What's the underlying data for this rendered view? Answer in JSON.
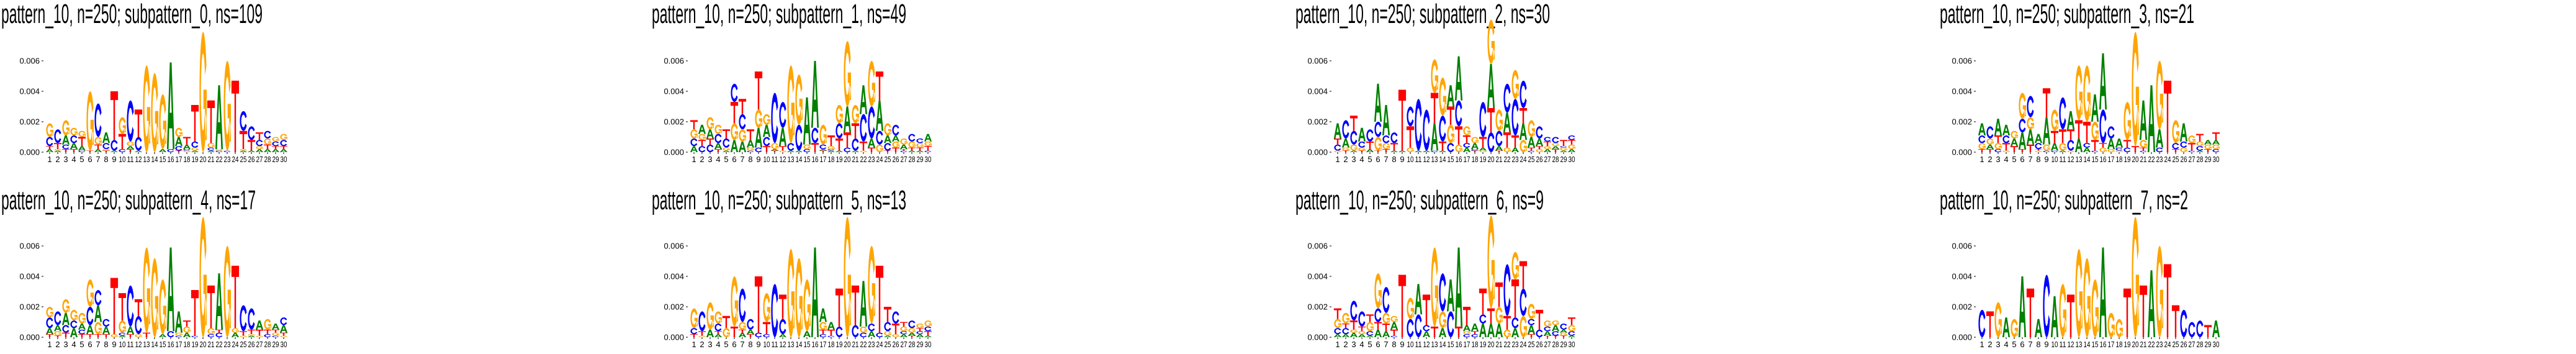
{
  "colors": {
    "A": "#008000",
    "C": "#0000ff",
    "G": "#ffa500",
    "T": "#ff0000"
  },
  "chart_data": {
    "type": "sequence_logo",
    "height_unit": "1e-4",
    "ylim": [
      0,
      0.008
    ],
    "yticks": [
      "0.000",
      "0.002",
      "0.004",
      "0.006"
    ],
    "positions": [
      "1",
      "2",
      "3",
      "4",
      "5",
      "6",
      "7",
      "8",
      "9",
      "10",
      "11",
      "12",
      "13",
      "14",
      "15",
      "16",
      "17",
      "18",
      "19",
      "20",
      "21",
      "22",
      "23",
      "24",
      "25",
      "26",
      "27",
      "28",
      "29",
      "30"
    ],
    "panels": [
      {
        "title": "pattern_10, n=250; subpattern_0, ns=109",
        "stacks": [
          "A2T2C6G9",
          "A1G1T4C9",
          "T2C3A6G10",
          "T2A4C5G5",
          "C1A3T6G4",
          "T1G39",
          "A2T3G5C22",
          "T1G1C4A7",
          "A1C7T32",
          "C2T10G11",
          "T2A2G3C27",
          "A1C9T18",
          "G57",
          "G52",
          "A2G36",
          "C2A57",
          "T1C3A6G6",
          "G1C1A3T5",
          "A1G2C4T24",
          "G79",
          "A1C2G3T28",
          "C1G1A42",
          "C1G59",
          "T47",
          "A1G1T12C13",
          "A1T7C9",
          "A2G2C4T5",
          "A2T3G4C5",
          "A2T2C3G3",
          "A2T2C4G4"
        ]
      },
      {
        "title": "pattern_10, n=250; subpattern_1, ns=49",
        "stacks": [
          "A4C5G6T6",
          "C4T4G4A6",
          "C5T4A6G8",
          "T2A4C6G6",
          "A1G2C6T6",
          "A8G11T14C12",
          "A7G8C10T10",
          "C1G2A5T7",
          "C3A13G12T25",
          "T4C6A8G7",
          "T1A1G4C33",
          "G1T3A12C17",
          "A1C5G51",
          "A1C17G33",
          "C2G3A31",
          "T6C10A44",
          "T1A1C3G13",
          "A1C1G2T7",
          "A1T8C10G12",
          "C3T10A17G43",
          "A1C8T10G12",
          "G1T6C18A19",
          "T3A6C21G30",
          "G5C9A20T19",
          "T1C5A5G8",
          "T3G4A4C7",
          "C1T1A3G4",
          "A1T2G4C5",
          "A1T2G3C3",
          "C1T3G3A5"
        ]
      },
      {
        "title": "pattern_10, n=250; subpattern_2, ns=30",
        "stacks": [
          "G1C4T4A10",
          "T1G2A6C12",
          "A1G4C9T10",
          "T1G2C4A9",
          "A2T5C8",
          "T1G9C10A25",
          "T2G4C5A20",
          "A1T5C7",
          "A1T40",
          "G3T14C13",
          "A1C34",
          "A1C27",
          "C1A18T20G22",
          "A1T6C17G25",
          "C6G12T12A14",
          "G5T12C17A29",
          "A3C3T5G6",
          "T1C1A4G4",
          "G1A2T7C23",
          "C13T16A29G29",
          "T1A3C10G14",
          "G3T10A13C19",
          "A3T8C24G19",
          "G8A11T10C18",
          "C1T2A7G11",
          "G2T2A5C8",
          "A2G2T3C3",
          "T2A2G2C4",
          "A1G2C1T4",
          "A2G3T3C3"
        ]
      },
      {
        "title": "pattern_10, n=250; subpattern_3, ns=21",
        "stacks": [
          "T2G4C5A8",
          "T2A3G4C8",
          "C2G4T5A11",
          "G1T5C5A7",
          "T4A5G5",
          "T2A11C9G17",
          "T5A10G8C14",
          "G1T1C4A6",
          "C1G4A18T19",
          "C1A5T8G14",
          "A1G5T9C21",
          "G1C7T7A12",
          "A9T12G36",
          "A3C3T14G37",
          "C1T7G12A18",
          "G3T3C22A37",
          "G2A7C8",
          "G1C2A6",
          "C3T5G25",
          "T4G75",
          "C1T2G5A26",
          "A44",
          "C3A12G45",
          "T47",
          "T2C4G15",
          "G3C4A12",
          "C1T5G5",
          "A1C3G3T5",
          "T2G3A3",
          "C2G3A3T5"
        ]
      },
      {
        "title": "pattern_10, n=250; subpattern_4, ns=17",
        "stacks": [
          "T2A4C7G7",
          "T1G3A4C9",
          "T3C5A8G9",
          "A6C5G7",
          "T2C3A4G7",
          "T2A6C12G18",
          "T2G8A11C10",
          "T2A5C5",
          "G2T37",
          "A1C2G8T18",
          "T2A5C27",
          "G2C12T11",
          "T3G56",
          "G52",
          "A2G36",
          "C4A55",
          "C1G2A14",
          "A3G4T4",
          "C1T30",
          "G79",
          "C2G4T28",
          "C3T2A37",
          "G60",
          "A3G3T41",
          "G1T3C17",
          "A1G1T3C14",
          "G1T4A6",
          "C2T3G7",
          "C1G2T2A4",
          "G1T2A5C5"
        ]
      },
      {
        "title": "pattern_10, n=250; subpattern_5, ns=13",
        "stacks": [
          "T2C4G13",
          "G1T3C13",
          "A5G18",
          "A2T2C5G8",
          "G6T8",
          "T7G33",
          "A3T2G5C22",
          "T2A3C7",
          "C3T37",
          "C2T8G19",
          "C35",
          "A2C10T16",
          "G58",
          "G52",
          "A4G34",
          "A59",
          "C2T3G5A9",
          "C1T4A5",
          "C7T25",
          "G79",
          "C8T26",
          "C3G4A30",
          "A4C5G51",
          "C3T44",
          "A1G3C6T10",
          "G2T7C8",
          "A2C2G3T3",
          "T1A2G3C5",
          "A2C2T2G3",
          "A1T3C3G4"
        ]
      },
      {
        "title": "pattern_10, n=250; subpattern_6, ns=9",
        "stacks": [
          "A2C4G6T7",
          "A2C4T3G7",
          "A3G2T6C13",
          "A2G2T3C10",
          "A1C3G6T5",
          "A5T5C9G23",
          "A4T5G7C17",
          "C1T4A5G4",
          "T41",
          "C12G14",
          "C15A20",
          "A4C4T20",
          "T7G52",
          "A6G11C25",
          "C17A21",
          "T7A52",
          "C2G2A4T12",
          "C2T2A5",
          "A9C6T17",
          "A9T10G61",
          "A9G11T16",
          "G5T9C34",
          "A6C7T25G18",
          "G14C18T18",
          "T2A6C4G10",
          "C5T13",
          "T1A3C3G4",
          "T1C3A4G3",
          "T1G2A2C4",
          "A1C3G4T5"
        ]
      },
      {
        "title": "pattern_10, n=250; subpattern_7, ns=2",
        "stacks": [
          "C18",
          "T17",
          "G23",
          "A13",
          "G12",
          "A40",
          "T32",
          "A12",
          "C41",
          "A27",
          "G35",
          "T28",
          "G58",
          "G52",
          "G38",
          "A59",
          "G16",
          "G12",
          "T32",
          "G79",
          "T34",
          "A44",
          "G60",
          "T48",
          "T21",
          "C18",
          "C10",
          "C11",
          "T8",
          "A11"
        ]
      }
    ]
  }
}
